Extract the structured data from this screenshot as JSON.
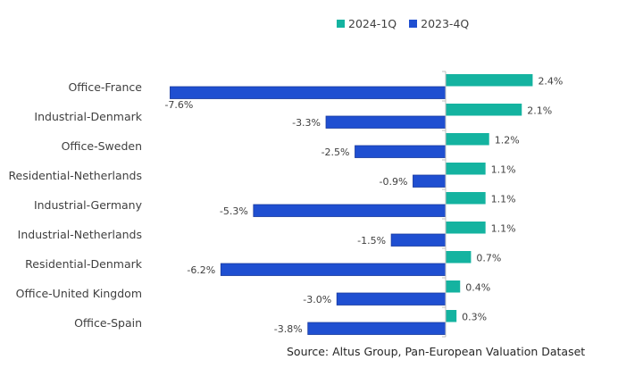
{
  "chart_data": {
    "type": "bar",
    "orientation": "horizontal",
    "title": "",
    "xlabel": "",
    "ylabel": "",
    "categories": [
      "Office-France",
      "Industrial-Denmark",
      "Office-Sweden",
      "Residential-Netherlands",
      "Industrial-Germany",
      "Industrial-Netherlands",
      "Residential-Denmark",
      "Office-United Kingdom",
      "Office-Spain"
    ],
    "series": [
      {
        "name": "2024-1Q",
        "color": "#14b3a0",
        "values": [
          2.4,
          2.1,
          1.2,
          1.1,
          1.1,
          1.1,
          0.7,
          0.4,
          0.3
        ],
        "labels": [
          "2.4%",
          "2.1%",
          "1.2%",
          "1.1%",
          "1.1%",
          "1.1%",
          "0.7%",
          "0.4%",
          "0.3%"
        ]
      },
      {
        "name": "2023-4Q",
        "color": "#1f4fd1",
        "values": [
          -7.6,
          -3.3,
          -2.5,
          -0.9,
          -5.3,
          -1.5,
          -6.2,
          -3.0,
          -3.8
        ],
        "labels": [
          "-7.6%",
          "-3.3%",
          "-2.5%",
          "-0.9%",
          "-5.3%",
          "-1.5%",
          "-6.2%",
          "-3.0%",
          "-3.8%"
        ]
      }
    ],
    "value_unit": "%",
    "xlim": [
      -7.6,
      4.0
    ],
    "grid": false,
    "legend_position": "top-right",
    "x_axis_visible": false
  },
  "legend": {
    "items": [
      {
        "label": "2024-1Q",
        "color": "#14b3a0"
      },
      {
        "label": "2023-4Q",
        "color": "#1f4fd1"
      }
    ]
  },
  "source": "Source:  Altus Group, Pan-European Valuation Dataset"
}
